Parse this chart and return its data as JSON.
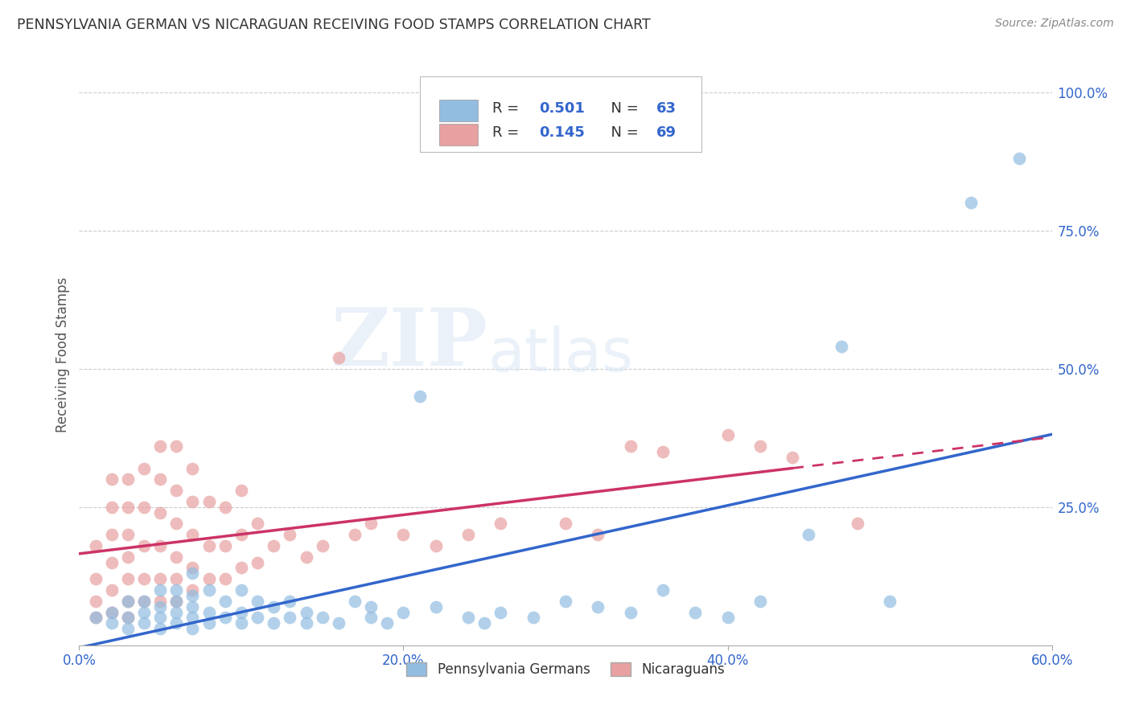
{
  "title": "PENNSYLVANIA GERMAN VS NICARAGUAN RECEIVING FOOD STAMPS CORRELATION CHART",
  "source": "Source: ZipAtlas.com",
  "ylabel": "Receiving Food Stamps",
  "xlim": [
    0.0,
    0.6
  ],
  "ylim": [
    0.0,
    1.05
  ],
  "xtick_labels": [
    "0.0%",
    "20.0%",
    "40.0%",
    "60.0%"
  ],
  "xtick_values": [
    0.0,
    0.2,
    0.4,
    0.6
  ],
  "ytick_labels": [
    "25.0%",
    "50.0%",
    "75.0%",
    "100.0%"
  ],
  "ytick_values": [
    0.25,
    0.5,
    0.75,
    1.0
  ],
  "blue_color": "#92bce0",
  "pink_color": "#e8a0a0",
  "blue_line_color": "#3366cc",
  "pink_line_color": "#cc3366",
  "R_blue": 0.501,
  "N_blue": 63,
  "R_pink": 0.145,
  "N_pink": 69,
  "legend_label_blue": "Pennsylvania Germans",
  "legend_label_pink": "Nicaraguans",
  "watermark_zip": "ZIP",
  "watermark_atlas": "atlas",
  "blue_scatter_x": [
    0.01,
    0.02,
    0.02,
    0.03,
    0.03,
    0.03,
    0.04,
    0.04,
    0.04,
    0.05,
    0.05,
    0.05,
    0.05,
    0.06,
    0.06,
    0.06,
    0.06,
    0.07,
    0.07,
    0.07,
    0.07,
    0.07,
    0.08,
    0.08,
    0.08,
    0.09,
    0.09,
    0.1,
    0.1,
    0.1,
    0.11,
    0.11,
    0.12,
    0.12,
    0.13,
    0.13,
    0.14,
    0.14,
    0.15,
    0.16,
    0.17,
    0.18,
    0.18,
    0.19,
    0.2,
    0.21,
    0.22,
    0.24,
    0.25,
    0.26,
    0.28,
    0.3,
    0.32,
    0.34,
    0.36,
    0.38,
    0.4,
    0.42,
    0.45,
    0.47,
    0.5,
    0.55,
    0.58
  ],
  "blue_scatter_y": [
    0.05,
    0.04,
    0.06,
    0.03,
    0.05,
    0.08,
    0.04,
    0.06,
    0.08,
    0.03,
    0.05,
    0.07,
    0.1,
    0.04,
    0.06,
    0.08,
    0.1,
    0.03,
    0.05,
    0.07,
    0.09,
    0.13,
    0.04,
    0.06,
    0.1,
    0.05,
    0.08,
    0.04,
    0.06,
    0.1,
    0.05,
    0.08,
    0.04,
    0.07,
    0.05,
    0.08,
    0.04,
    0.06,
    0.05,
    0.04,
    0.08,
    0.05,
    0.07,
    0.04,
    0.06,
    0.45,
    0.07,
    0.05,
    0.04,
    0.06,
    0.05,
    0.08,
    0.07,
    0.06,
    0.1,
    0.06,
    0.05,
    0.08,
    0.2,
    0.54,
    0.08,
    0.8,
    0.88
  ],
  "pink_scatter_x": [
    0.01,
    0.01,
    0.01,
    0.01,
    0.02,
    0.02,
    0.02,
    0.02,
    0.02,
    0.02,
    0.03,
    0.03,
    0.03,
    0.03,
    0.03,
    0.03,
    0.03,
    0.04,
    0.04,
    0.04,
    0.04,
    0.04,
    0.05,
    0.05,
    0.05,
    0.05,
    0.05,
    0.05,
    0.06,
    0.06,
    0.06,
    0.06,
    0.06,
    0.06,
    0.07,
    0.07,
    0.07,
    0.07,
    0.07,
    0.08,
    0.08,
    0.08,
    0.09,
    0.09,
    0.09,
    0.1,
    0.1,
    0.1,
    0.11,
    0.11,
    0.12,
    0.13,
    0.14,
    0.15,
    0.16,
    0.17,
    0.18,
    0.2,
    0.22,
    0.24,
    0.26,
    0.3,
    0.32,
    0.34,
    0.36,
    0.4,
    0.42,
    0.44,
    0.48
  ],
  "pink_scatter_y": [
    0.05,
    0.08,
    0.12,
    0.18,
    0.06,
    0.1,
    0.15,
    0.2,
    0.25,
    0.3,
    0.05,
    0.08,
    0.12,
    0.16,
    0.2,
    0.25,
    0.3,
    0.08,
    0.12,
    0.18,
    0.25,
    0.32,
    0.08,
    0.12,
    0.18,
    0.24,
    0.3,
    0.36,
    0.08,
    0.12,
    0.16,
    0.22,
    0.28,
    0.36,
    0.1,
    0.14,
    0.2,
    0.26,
    0.32,
    0.12,
    0.18,
    0.26,
    0.12,
    0.18,
    0.25,
    0.14,
    0.2,
    0.28,
    0.15,
    0.22,
    0.18,
    0.2,
    0.16,
    0.18,
    0.52,
    0.2,
    0.22,
    0.2,
    0.18,
    0.2,
    0.22,
    0.22,
    0.2,
    0.36,
    0.35,
    0.38,
    0.36,
    0.34,
    0.22
  ]
}
